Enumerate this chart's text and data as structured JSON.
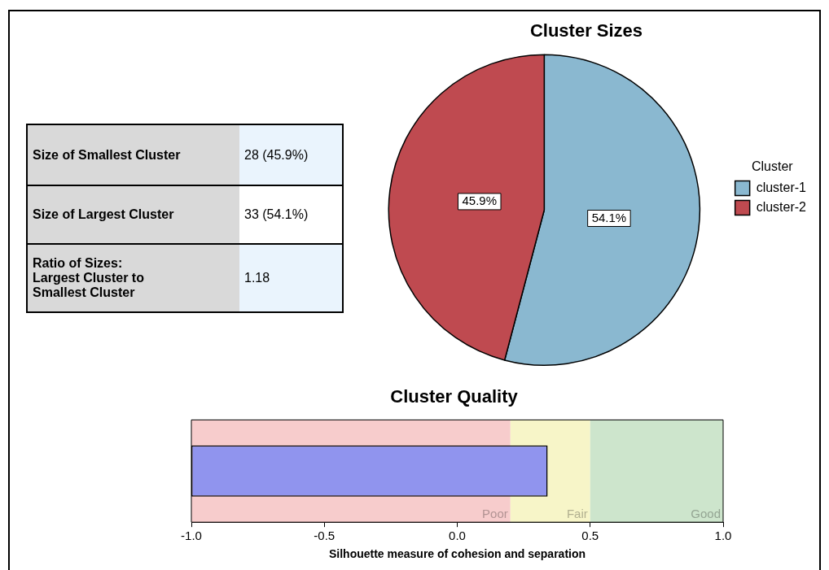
{
  "chart_data": [
    {
      "type": "other",
      "annotations": [
        "Size of Smallest Cluster",
        "28 (45.9%)",
        "Size of Largest Cluster",
        "33 (54.1%)",
        "Ratio of Sizes:\nLargest Cluster to\nSmallest Cluster",
        "1.18"
      ]
    },
    {
      "type": "pie",
      "title": "Cluster Sizes",
      "legend_title": "Cluster",
      "legend": "right",
      "categories": [
        "cluster-1",
        "cluster-2"
      ],
      "values": [
        54.1,
        45.9
      ],
      "colors": [
        "#8ab8d0",
        "#bf4a50"
      ],
      "value_labels": [
        "54.1%",
        "45.9%"
      ]
    },
    {
      "type": "bar",
      "title": "Cluster Quality",
      "orientation": "horizontal",
      "categories": [
        null
      ],
      "base": [
        -1
      ],
      "values": [
        1.34
      ],
      "color": "#9094ee",
      "xlabel": "Silhouette measure of cohesion and separation",
      "xlim": [
        -1,
        1
      ],
      "xticks": [
        {
          "value": -1,
          "label": "-1.0"
        },
        {
          "value": -0.5,
          "label": "-0.5"
        },
        {
          "value": 0,
          "label": "0.0"
        },
        {
          "value": 0.5,
          "label": "0.5"
        },
        {
          "value": 1,
          "label": "1.0"
        }
      ],
      "bands": [
        {
          "axis": "x",
          "from": -1,
          "to": 0.2,
          "label": "Poor",
          "color": "#f7cccc"
        },
        {
          "axis": "x",
          "from": 0.2,
          "to": 0.5,
          "label": "Fair",
          "color": "#f7f5c8"
        },
        {
          "axis": "x",
          "from": 0.5,
          "to": 1,
          "label": "Good",
          "color": "#cde5cc"
        }
      ]
    }
  ]
}
